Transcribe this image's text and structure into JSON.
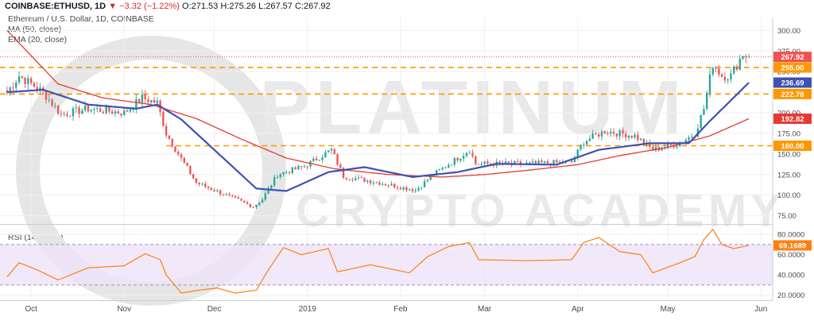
{
  "header": {
    "symbol": "COINBASE:ETHUSD, 1D",
    "open": "O:271.53",
    "high": "H:275.26",
    "low": "L:267.57",
    "close": "C:267.92",
    "change": "▼ −3.32 (−1.22%)"
  },
  "legend": {
    "title": "Ethereum / U.S. Dollar, 1D, COINBASE",
    "ma": "MA (50, close)",
    "ema": "EMA (20, close)",
    "rsi": "RSI (14, close)"
  },
  "watermark": {
    "line1": "PLATINUM",
    "line2": "CRYPTO ACADEMY"
  },
  "colors": {
    "up": "#26a69a",
    "down": "#ef5350",
    "ma": "#e53935",
    "ema": "#3f51b5",
    "level": "#ff9800",
    "rsi": "#ff7f0e",
    "rsi_band": "#ede4f7"
  },
  "chart_data": [
    {
      "type": "candlestick",
      "title": "Ethereum / U.S. Dollar, 1D, COINBASE",
      "ylim": [
        65,
        310
      ],
      "y_ticks": [
        75,
        100,
        125,
        150,
        175,
        200,
        225,
        250,
        275,
        300
      ],
      "y_tick_labels": [
        "75.00",
        "100.00",
        "125.00",
        "150.00",
        "175.00",
        "200.00",
        "225.00",
        "250.00",
        "275.00",
        "300.00"
      ],
      "x_tick_labels": [
        "Oct",
        "Nov",
        "Dec",
        "2019",
        "Feb",
        "Mar",
        "Apr",
        "May",
        "Jun"
      ],
      "x_tick_dates": [
        "2018-10-01",
        "2018-11-01",
        "2018-12-01",
        "2019-01-01",
        "2019-02-01",
        "2019-03-01",
        "2019-04-01",
        "2019-05-01",
        "2019-06-01"
      ],
      "start_date": "2018-09-23",
      "end_date": "2019-05-28",
      "series": [
        {
          "name": "ETHUSD",
          "anchors": [
            {
              "date": "2018-09-23",
              "price": 225
            },
            {
              "date": "2018-09-27",
              "price": 245
            },
            {
              "date": "2018-10-05",
              "price": 225
            },
            {
              "date": "2018-10-11",
              "price": 198
            },
            {
              "date": "2018-10-20",
              "price": 205
            },
            {
              "date": "2018-11-01",
              "price": 200
            },
            {
              "date": "2018-11-07",
              "price": 218
            },
            {
              "date": "2018-11-12",
              "price": 212
            },
            {
              "date": "2018-11-15",
              "price": 175
            },
            {
              "date": "2018-11-19",
              "price": 150
            },
            {
              "date": "2018-11-25",
              "price": 115
            },
            {
              "date": "2018-12-05",
              "price": 100
            },
            {
              "date": "2018-12-14",
              "price": 86
            },
            {
              "date": "2018-12-17",
              "price": 95
            },
            {
              "date": "2018-12-22",
              "price": 125
            },
            {
              "date": "2018-12-31",
              "price": 135
            },
            {
              "date": "2019-01-09",
              "price": 155
            },
            {
              "date": "2019-01-13",
              "price": 123
            },
            {
              "date": "2019-01-25",
              "price": 115
            },
            {
              "date": "2019-02-06",
              "price": 106
            },
            {
              "date": "2019-02-12",
              "price": 125
            },
            {
              "date": "2019-02-24",
              "price": 155
            },
            {
              "date": "2019-02-26",
              "price": 138
            },
            {
              "date": "2019-03-15",
              "price": 138
            },
            {
              "date": "2019-03-30",
              "price": 140
            },
            {
              "date": "2019-04-03",
              "price": 165
            },
            {
              "date": "2019-04-10",
              "price": 178
            },
            {
              "date": "2019-04-20",
              "price": 172
            },
            {
              "date": "2019-04-26",
              "price": 155
            },
            {
              "date": "2019-05-05",
              "price": 163
            },
            {
              "date": "2019-05-10",
              "price": 175
            },
            {
              "date": "2019-05-13",
              "price": 205
            },
            {
              "date": "2019-05-16",
              "price": 260
            },
            {
              "date": "2019-05-19",
              "price": 245
            },
            {
              "date": "2019-05-22",
              "price": 245
            },
            {
              "date": "2019-05-26",
              "price": 272
            },
            {
              "date": "2019-05-28",
              "price": 267.92
            }
          ]
        },
        {
          "name": "MA (50, close)",
          "points": [
            {
              "date": "2018-09-23",
              "price": 300
            },
            {
              "date": "2018-10-10",
              "price": 235
            },
            {
              "date": "2018-10-25",
              "price": 218
            },
            {
              "date": "2018-11-10",
              "price": 210
            },
            {
              "date": "2018-11-25",
              "price": 193
            },
            {
              "date": "2018-12-10",
              "price": 168
            },
            {
              "date": "2018-12-25",
              "price": 145
            },
            {
              "date": "2019-01-10",
              "price": 132
            },
            {
              "date": "2019-01-28",
              "price": 125
            },
            {
              "date": "2019-02-15",
              "price": 122
            },
            {
              "date": "2019-03-01",
              "price": 125
            },
            {
              "date": "2019-03-15",
              "price": 130
            },
            {
              "date": "2019-04-01",
              "price": 137
            },
            {
              "date": "2019-04-15",
              "price": 148
            },
            {
              "date": "2019-05-01",
              "price": 158
            },
            {
              "date": "2019-05-15",
              "price": 172
            },
            {
              "date": "2019-05-28",
              "price": 192.82
            }
          ]
        },
        {
          "name": "EMA (20, close)",
          "points": [
            {
              "date": "2018-09-23",
              "price": 225
            },
            {
              "date": "2018-10-05",
              "price": 228
            },
            {
              "date": "2018-10-20",
              "price": 210
            },
            {
              "date": "2018-11-05",
              "price": 205
            },
            {
              "date": "2018-11-12",
              "price": 210
            },
            {
              "date": "2018-11-20",
              "price": 192
            },
            {
              "date": "2018-12-01",
              "price": 155
            },
            {
              "date": "2018-12-15",
              "price": 108
            },
            {
              "date": "2018-12-25",
              "price": 105
            },
            {
              "date": "2019-01-08",
              "price": 128
            },
            {
              "date": "2019-01-20",
              "price": 134
            },
            {
              "date": "2019-02-05",
              "price": 122
            },
            {
              "date": "2019-02-20",
              "price": 128
            },
            {
              "date": "2019-03-05",
              "price": 138
            },
            {
              "date": "2019-03-25",
              "price": 137
            },
            {
              "date": "2019-04-08",
              "price": 155
            },
            {
              "date": "2019-04-25",
              "price": 163
            },
            {
              "date": "2019-05-08",
              "price": 163
            },
            {
              "date": "2019-05-15",
              "price": 190
            },
            {
              "date": "2019-05-28",
              "price": 236.69
            }
          ]
        }
      ],
      "horizontal_levels": [
        {
          "value": 255.0,
          "label": "255.00",
          "style": "dashed"
        },
        {
          "value": 222.78,
          "label": "222.78",
          "style": "dashed"
        },
        {
          "value": 160.0,
          "label": "160.00",
          "style": "dashed"
        }
      ],
      "price_tags": [
        {
          "value": 267.92,
          "label": "267.92",
          "color": "#ef5350"
        },
        {
          "value": 255.0,
          "label": "255.00",
          "color": "#ff9800"
        },
        {
          "value": 236.69,
          "label": "236.69",
          "color": "#3f51b5"
        },
        {
          "value": 222.78,
          "label": "222.78",
          "color": "#ff9800"
        },
        {
          "value": 192.82,
          "label": "192.82",
          "color": "#e53935"
        },
        {
          "value": 160.0,
          "label": "160.00",
          "color": "#ff9800"
        }
      ],
      "grid": true
    },
    {
      "type": "line",
      "title": "RSI (14, close)",
      "ylim": [
        15,
        88
      ],
      "y_ticks": [
        20,
        40,
        60,
        80
      ],
      "y_tick_labels": [
        "20.0000",
        "40.0000",
        "60.0000",
        "80.0000"
      ],
      "band": [
        30,
        70
      ],
      "current_label": "69.1689",
      "series": [
        {
          "name": "RSI (14, close)",
          "points": [
            {
              "date": "2018-09-23",
              "rsi": 38
            },
            {
              "date": "2018-09-27",
              "rsi": 52
            },
            {
              "date": "2018-10-03",
              "rsi": 45
            },
            {
              "date": "2018-10-10",
              "rsi": 35
            },
            {
              "date": "2018-10-20",
              "rsi": 47
            },
            {
              "date": "2018-11-01",
              "rsi": 49
            },
            {
              "date": "2018-11-08",
              "rsi": 61
            },
            {
              "date": "2018-11-13",
              "rsi": 55
            },
            {
              "date": "2018-11-15",
              "rsi": 40
            },
            {
              "date": "2018-11-20",
              "rsi": 22
            },
            {
              "date": "2018-11-26",
              "rsi": 25
            },
            {
              "date": "2018-12-02",
              "rsi": 27
            },
            {
              "date": "2018-12-08",
              "rsi": 22
            },
            {
              "date": "2018-12-15",
              "rsi": 25
            },
            {
              "date": "2018-12-19",
              "rsi": 45
            },
            {
              "date": "2018-12-24",
              "rsi": 67
            },
            {
              "date": "2018-12-30",
              "rsi": 60
            },
            {
              "date": "2019-01-08",
              "rsi": 66
            },
            {
              "date": "2019-01-11",
              "rsi": 43
            },
            {
              "date": "2019-01-22",
              "rsi": 50
            },
            {
              "date": "2019-02-04",
              "rsi": 42
            },
            {
              "date": "2019-02-10",
              "rsi": 58
            },
            {
              "date": "2019-02-17",
              "rsi": 68
            },
            {
              "date": "2019-02-24",
              "rsi": 72
            },
            {
              "date": "2019-02-27",
              "rsi": 55
            },
            {
              "date": "2019-03-15",
              "rsi": 54
            },
            {
              "date": "2019-03-30",
              "rsi": 55
            },
            {
              "date": "2019-04-03",
              "rsi": 72
            },
            {
              "date": "2019-04-08",
              "rsi": 77
            },
            {
              "date": "2019-04-15",
              "rsi": 63
            },
            {
              "date": "2019-04-22",
              "rsi": 60
            },
            {
              "date": "2019-04-26",
              "rsi": 42
            },
            {
              "date": "2019-05-05",
              "rsi": 52
            },
            {
              "date": "2019-05-10",
              "rsi": 58
            },
            {
              "date": "2019-05-13",
              "rsi": 75
            },
            {
              "date": "2019-05-16",
              "rsi": 85
            },
            {
              "date": "2019-05-19",
              "rsi": 70
            },
            {
              "date": "2019-05-23",
              "rsi": 66
            },
            {
              "date": "2019-05-28",
              "rsi": 69.17
            }
          ]
        }
      ]
    }
  ]
}
